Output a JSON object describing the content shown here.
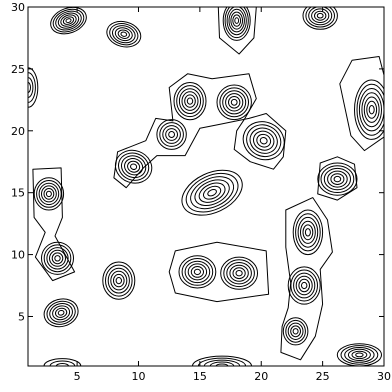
{
  "chart_data": {
    "type": "contour",
    "title": "",
    "xlabel": "",
    "ylabel": "",
    "xlim": [
      1,
      30
    ],
    "ylim": [
      1,
      30
    ],
    "x_ticks": [
      5,
      10,
      15,
      20,
      25,
      30
    ],
    "y_ticks": [
      5,
      10,
      15,
      20,
      25,
      30
    ],
    "x_tick_labels": [
      "5",
      "10",
      "15",
      "20",
      "25",
      "30"
    ],
    "y_tick_labels": [
      "5",
      "10",
      "15",
      "20",
      "25",
      "30"
    ],
    "grid": false,
    "line_color": "#000000",
    "peaks": [
      {
        "x": 4.3,
        "y": 28.9,
        "rx": 1.5,
        "ry": 1.0,
        "angle": -20,
        "levels": 7
      },
      {
        "x": 8.8,
        "y": 27.8,
        "rx": 1.4,
        "ry": 1.0,
        "angle": 15,
        "levels": 6
      },
      {
        "x": 18.0,
        "y": 28.9,
        "rx": 1.1,
        "ry": 1.6,
        "angle": 0,
        "levels": 7
      },
      {
        "x": 24.8,
        "y": 29.3,
        "rx": 1.4,
        "ry": 1.1,
        "angle": 0,
        "levels": 6
      },
      {
        "x": 1.0,
        "y": 23.5,
        "rx": 0.8,
        "ry": 1.6,
        "angle": 0,
        "levels": 4
      },
      {
        "x": 14.2,
        "y": 22.4,
        "rx": 1.3,
        "ry": 1.5,
        "angle": 0,
        "levels": 6
      },
      {
        "x": 17.8,
        "y": 22.3,
        "rx": 1.4,
        "ry": 1.4,
        "angle": 0,
        "levels": 6
      },
      {
        "x": 12.7,
        "y": 19.7,
        "rx": 1.2,
        "ry": 1.2,
        "angle": 0,
        "levels": 5
      },
      {
        "x": 20.2,
        "y": 19.2,
        "rx": 1.7,
        "ry": 1.5,
        "angle": 25,
        "levels": 6
      },
      {
        "x": 29.0,
        "y": 21.7,
        "rx": 1.4,
        "ry": 2.4,
        "angle": 0,
        "levels": 7
      },
      {
        "x": 9.6,
        "y": 17.1,
        "rx": 1.5,
        "ry": 1.3,
        "angle": 20,
        "levels": 6
      },
      {
        "x": 16.0,
        "y": 15.0,
        "rx": 2.6,
        "ry": 1.6,
        "angle": -25,
        "levels": 7
      },
      {
        "x": 26.2,
        "y": 16.1,
        "rx": 1.6,
        "ry": 1.3,
        "angle": 0,
        "levels": 6
      },
      {
        "x": 2.7,
        "y": 14.9,
        "rx": 1.2,
        "ry": 1.3,
        "angle": 0,
        "levels": 6
      },
      {
        "x": 23.8,
        "y": 11.8,
        "rx": 1.2,
        "ry": 1.8,
        "angle": 0,
        "levels": 6
      },
      {
        "x": 3.4,
        "y": 9.7,
        "rx": 1.3,
        "ry": 1.3,
        "angle": 0,
        "levels": 6
      },
      {
        "x": 8.4,
        "y": 7.9,
        "rx": 1.3,
        "ry": 1.5,
        "angle": 0,
        "levels": 6
      },
      {
        "x": 14.8,
        "y": 8.6,
        "rx": 1.5,
        "ry": 1.3,
        "angle": 0,
        "levels": 6
      },
      {
        "x": 18.2,
        "y": 8.5,
        "rx": 1.5,
        "ry": 1.3,
        "angle": 0,
        "levels": 6
      },
      {
        "x": 23.5,
        "y": 7.5,
        "rx": 1.3,
        "ry": 1.5,
        "angle": 0,
        "levels": 6
      },
      {
        "x": 3.7,
        "y": 5.3,
        "rx": 1.4,
        "ry": 1.1,
        "angle": -15,
        "levels": 6
      },
      {
        "x": 22.8,
        "y": 3.8,
        "rx": 1.0,
        "ry": 1.1,
        "angle": 0,
        "levels": 5
      },
      {
        "x": 28.0,
        "y": 1.9,
        "rx": 1.8,
        "ry": 0.9,
        "angle": 0,
        "levels": 6
      },
      {
        "x": 16.8,
        "y": 1.0,
        "rx": 2.4,
        "ry": 0.8,
        "angle": 0,
        "levels": 5
      },
      {
        "x": 3.8,
        "y": 1.0,
        "rx": 1.5,
        "ry": 0.6,
        "angle": 0,
        "levels": 3
      }
    ],
    "outer_outlines": [
      {
        "points": [
          [
            12.8,
            20.8
          ],
          [
            12.5,
            23.5
          ],
          [
            14.0,
            24.6
          ],
          [
            16.0,
            24.2
          ],
          [
            19.0,
            24.6
          ],
          [
            19.6,
            22.6
          ],
          [
            18.6,
            20.9
          ],
          [
            18.0,
            20.0
          ],
          [
            17.8,
            18.5
          ],
          [
            19.1,
            17.5
          ],
          [
            21.0,
            16.9
          ],
          [
            21.8,
            17.9
          ],
          [
            22.0,
            20.0
          ],
          [
            20.4,
            21.4
          ],
          [
            19.0,
            21.0
          ],
          [
            16.5,
            20.5
          ],
          [
            15.0,
            20.2
          ],
          [
            13.8,
            18.0
          ],
          [
            11.5,
            18.0
          ],
          [
            10.4,
            17.0
          ],
          [
            9.0,
            15.4
          ],
          [
            8.0,
            16.2
          ],
          [
            8.3,
            18.3
          ],
          [
            10.6,
            19.2
          ],
          [
            11.4,
            21.0
          ],
          [
            12.8,
            20.8
          ]
        ]
      },
      {
        "points": [
          [
            1.5,
            13.0
          ],
          [
            1.4,
            16.9
          ],
          [
            3.7,
            17.0
          ],
          [
            3.8,
            13.0
          ],
          [
            3.2,
            11.5
          ],
          [
            4.8,
            8.6
          ],
          [
            3.0,
            7.9
          ],
          [
            1.6,
            9.8
          ],
          [
            2.4,
            11.8
          ],
          [
            1.5,
            13.0
          ]
        ]
      },
      {
        "points": [
          [
            13.0,
            10.3
          ],
          [
            16.4,
            11.0
          ],
          [
            20.4,
            10.3
          ],
          [
            20.6,
            6.8
          ],
          [
            16.4,
            6.2
          ],
          [
            13.0,
            6.9
          ],
          [
            12.5,
            8.6
          ],
          [
            13.0,
            10.3
          ]
        ]
      },
      {
        "points": [
          [
            22.0,
            10.6
          ],
          [
            22.0,
            13.6
          ],
          [
            24.2,
            14.6
          ],
          [
            25.4,
            12.8
          ],
          [
            25.8,
            10.2
          ],
          [
            24.8,
            8.8
          ],
          [
            25.0,
            6.0
          ],
          [
            24.4,
            3.4
          ],
          [
            23.2,
            1.5
          ],
          [
            21.6,
            2.1
          ],
          [
            21.7,
            4.2
          ],
          [
            22.2,
            5.7
          ],
          [
            22.4,
            7.7
          ],
          [
            22.0,
            10.6
          ]
        ]
      },
      {
        "points": [
          [
            16.6,
            27.5
          ],
          [
            16.5,
            30.0
          ],
          [
            19.6,
            30.0
          ],
          [
            19.4,
            27.5
          ],
          [
            18.2,
            26.2
          ],
          [
            16.6,
            27.5
          ]
        ]
      },
      {
        "points": [
          [
            26.4,
            23.8
          ],
          [
            27.4,
            25.7
          ],
          [
            29.6,
            26.0
          ],
          [
            30.0,
            24.5
          ],
          [
            30.0,
            19.5
          ],
          [
            28.4,
            18.4
          ],
          [
            27.3,
            19.6
          ],
          [
            26.4,
            23.8
          ]
        ]
      },
      {
        "points": [
          [
            24.6,
            14.9
          ],
          [
            24.8,
            17.4
          ],
          [
            26.2,
            17.9
          ],
          [
            27.6,
            17.3
          ],
          [
            27.8,
            15.4
          ],
          [
            26.2,
            14.4
          ],
          [
            24.6,
            14.9
          ]
        ]
      }
    ]
  }
}
